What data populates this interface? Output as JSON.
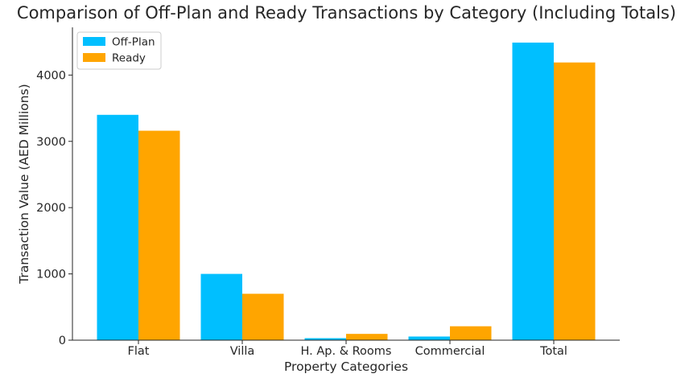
{
  "chart_data": {
    "type": "bar",
    "title": "Comparison of Off-Plan and Ready Transactions by Category (Including Totals)",
    "xlabel": "Property Categories",
    "ylabel": "Transaction Value (AED Millions)",
    "categories": [
      "Flat",
      "Villa",
      "H. Ap. & Rooms",
      "Commercial",
      "Total"
    ],
    "series": [
      {
        "name": "Off-Plan",
        "color": "#00bfff",
        "values": [
          3400,
          1000,
          30,
          55,
          4490
        ]
      },
      {
        "name": "Ready",
        "color": "#ffa500",
        "values": [
          3160,
          700,
          95,
          210,
          4190
        ]
      }
    ],
    "ylim": [
      0,
      4720
    ],
    "yticks": [
      0,
      1000,
      2000,
      3000,
      4000
    ],
    "grid": false,
    "legend_position": "top-left"
  }
}
